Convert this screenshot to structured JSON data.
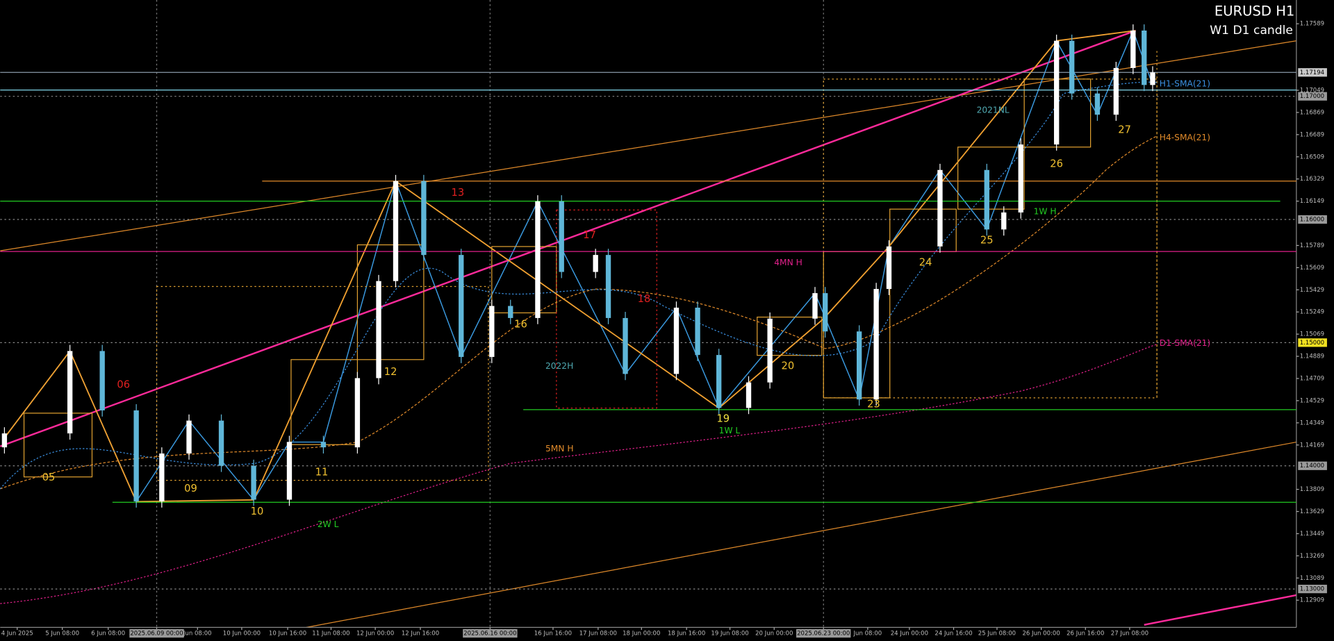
{
  "chart_data": {
    "type": "candlestick",
    "title": "EURUSD H1",
    "subtitle": "W1 D1 candle",
    "up_color": "#ffffff",
    "down_color": "#5fb6d8",
    "ylim": [
      1.12688,
      1.17782
    ],
    "yticks": [
      1.17589,
      1.17049,
      1.16869,
      1.16689,
      1.16509,
      1.16329,
      1.16149,
      1.15789,
      1.15609,
      1.15429,
      1.15249,
      1.15069,
      1.14889,
      1.14709,
      1.14529,
      1.14349,
      1.14169,
      1.13809,
      1.13629,
      1.13449,
      1.13269,
      1.13089,
      1.12909
    ],
    "round_levels": [
      {
        "value": 1.17,
        "label": "1.17000"
      },
      {
        "value": 1.16,
        "label": "1.16000"
      },
      {
        "value": 1.15,
        "label": "1.15000"
      },
      {
        "value": 1.14,
        "label": "1.14000"
      },
      {
        "value": 1.13,
        "label": "1.13000"
      }
    ],
    "current_price": {
      "value": 1.17194,
      "label": "1.17194"
    },
    "xticks": [
      "4 Jun 2025",
      "5 Jun 08:00",
      "6 Jun 08:00",
      "2025.06.09 00:00",
      "Jun 08:00",
      "10 Jun 00:00",
      "10 Jun 16:00",
      "11 Jun 08:00",
      "12 Jun 00:00",
      "12 Jun 16:00",
      "2025.06.16 00:00",
      "16 Jun 16:00",
      "17 Jun 08:00",
      "18 Jun 00:00",
      "18 Jun 16:00",
      "19 Jun 08:00",
      "20 Jun 00:00",
      "2025.06.23 00:00",
      "Jun 08:00",
      "24 Jun 00:00",
      "24 Jun 16:00",
      "25 Jun 08:00",
      "26 Jun 00:00",
      "26 Jun 16:00",
      "27 Jun 08:00"
    ],
    "open": [
      1.1415,
      1.14263,
      1.14932,
      1.1445,
      1.13711,
      1.141,
      1.14367,
      1.14,
      1.13725,
      1.14194,
      1.1415,
      1.14712,
      1.155,
      1.16312,
      1.15712,
      1.14884,
      1.15298,
      1.152,
      1.16147,
      1.15574,
      1.15712,
      1.152,
      1.14746,
      1.15284,
      1.149,
      1.1447,
      1.14677,
      1.15195,
      1.15402,
      1.15091,
      1.14539,
      1.15436,
      1.15781,
      1.16402,
      1.15919,
      1.16057,
      1.16609,
      1.17451,
      1.17023,
      1.16851,
      1.1723,
      1.17534,
      1.17092
    ],
    "high": [
      1.14313,
      1.14982,
      1.14982,
      1.145,
      1.1415,
      1.14417,
      1.14417,
      1.1405,
      1.14244,
      1.14244,
      1.14762,
      1.1555,
      1.16362,
      1.16362,
      1.15762,
      1.15348,
      1.15348,
      1.16197,
      1.16197,
      1.15762,
      1.15762,
      1.1525,
      1.15334,
      1.15334,
      1.1495,
      1.14727,
      1.15245,
      1.15452,
      1.15452,
      1.15141,
      1.15486,
      1.15831,
      1.16452,
      1.16452,
      1.16107,
      1.16659,
      1.17501,
      1.17501,
      1.17073,
      1.1728,
      1.17584,
      1.17584,
      1.17244
    ],
    "low": [
      1.141,
      1.14213,
      1.144,
      1.13661,
      1.13661,
      1.1405,
      1.1395,
      1.13675,
      1.13675,
      1.141,
      1.141,
      1.14662,
      1.1545,
      1.15662,
      1.14834,
      1.14834,
      1.1515,
      1.1515,
      1.15524,
      1.15524,
      1.1515,
      1.14696,
      1.14696,
      1.1485,
      1.1442,
      1.1442,
      1.14627,
      1.15145,
      1.15041,
      1.14489,
      1.14489,
      1.15386,
      1.15731,
      1.15869,
      1.15869,
      1.16007,
      1.16559,
      1.16973,
      1.16801,
      1.16801,
      1.1718,
      1.17042,
      1.17042
    ],
    "close": [
      1.14263,
      1.14932,
      1.1445,
      1.13711,
      1.141,
      1.14367,
      1.14,
      1.13725,
      1.14194,
      1.1415,
      1.14712,
      1.155,
      1.16312,
      1.15712,
      1.14884,
      1.15298,
      1.152,
      1.16147,
      1.15574,
      1.15712,
      1.152,
      1.14746,
      1.15284,
      1.149,
      1.1447,
      1.14677,
      1.15195,
      1.15402,
      1.15091,
      1.14539,
      1.15436,
      1.15781,
      1.16402,
      1.15919,
      1.16057,
      1.16609,
      1.17451,
      1.17023,
      1.16851,
      1.1723,
      1.17534,
      1.17092,
      1.17194
    ],
    "levels": [
      {
        "name": "1W H",
        "value": 1.16149,
        "color": "#22cc22"
      },
      {
        "name": "1W L",
        "value": 1.14456,
        "color": "#22cc22"
      },
      {
        "name": "2W L",
        "value": 1.13704,
        "color": "#22cc22"
      },
      {
        "name": "4MN H",
        "value": 1.1574,
        "color": "#e0208a"
      },
      {
        "value": 1.16312,
        "color": "#e08a2a"
      },
      {
        "value": 1.17051,
        "color": "#7fd4e8"
      }
    ],
    "indicators": [
      {
        "name": "H1-SMA(21)",
        "color": "#3a8fe0"
      },
      {
        "name": "H4-SMA(21)",
        "color": "#e08a2a"
      },
      {
        "name": "D1-SMA(21)",
        "color": "#e0208a"
      }
    ],
    "annotations": [
      {
        "text": "2021NL",
        "color": "#4fa8b0"
      },
      {
        "text": "2022H",
        "color": "#4fa8b0"
      },
      {
        "text": "5MN H",
        "color": "#e08a2a"
      }
    ],
    "wave_labels": [
      {
        "text": "05",
        "color": "#f0c030"
      },
      {
        "text": "06",
        "color": "#e02020"
      },
      {
        "text": "09",
        "color": "#f0c030"
      },
      {
        "text": "10",
        "color": "#f0c030"
      },
      {
        "text": "11",
        "color": "#f0c030"
      },
      {
        "text": "12",
        "color": "#f0c030"
      },
      {
        "text": "13",
        "color": "#e02020"
      },
      {
        "text": "16",
        "color": "#f0c030"
      },
      {
        "text": "17",
        "color": "#e02020"
      },
      {
        "text": "18",
        "color": "#e02020"
      },
      {
        "text": "19",
        "color": "#f0e040"
      },
      {
        "text": "20",
        "color": "#f0c030"
      },
      {
        "text": "23",
        "color": "#f0c030"
      },
      {
        "text": "24",
        "color": "#f0c030"
      },
      {
        "text": "25",
        "color": "#f0c030"
      },
      {
        "text": "26",
        "color": "#f0c030"
      },
      {
        "text": "27",
        "color": "#f0c030"
      }
    ]
  }
}
